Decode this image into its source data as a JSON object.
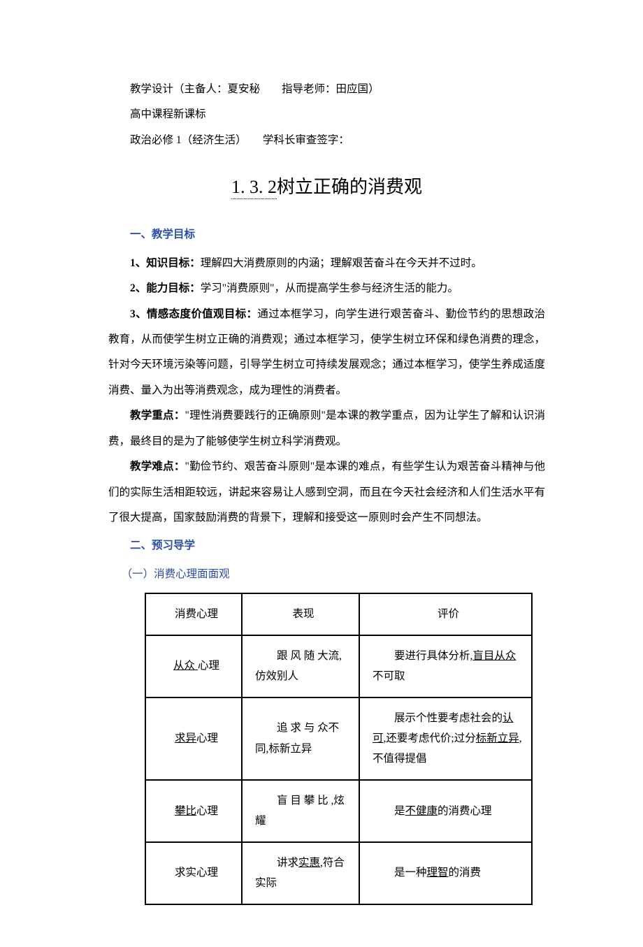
{
  "meta": {
    "line1_prefix": "教学设计（主备人：",
    "author": "夏安秘",
    "advisor_prefix": "　　指导老师：",
    "advisor": "田应国",
    "line1_suffix": "）",
    "line2": "高中课程新课标",
    "line3": "政治必修 1（经济生活）　　学科长审查签字："
  },
  "title": {
    "number": "1. 3. 2",
    "text": "树立正确的消费观"
  },
  "sec1": {
    "heading": "一、教学目标",
    "p1_label": "1、知识目标：",
    "p1_text": "理解四大消费原则的内涵；理解艰苦奋斗在今天并不过时。",
    "p2_label": "2、能力目标：",
    "p2_text": "学习\"消费原则\"，从而提高学生参与经济生活的能力。",
    "p3_label": "3、情感态度价值观目标：",
    "p3_text": "通过本框学习，向学生进行艰苦奋斗、勤俭节约的思想政治教育，从而使学生树立正确的消费观；通过本框学习，使学生树立环保和绿色消费的理念，针对今天环境污染等问题，引导学生树立可持续发展观念；通过本框学习，使学生养成适度消费、量入为出等消费观念，成为理性的消费者。",
    "p4_label": "教学重点：",
    "p4_text": "\"理性消费要践行的正确原则\"是本课的教学重点，因为让学生了解和认识消费，最终目的是为了能够使学生树立科学消费观。",
    "p5_label": "教学难点：",
    "p5_text": "\"勤俭节约、艰苦奋斗原则\"是本课的难点，有些学生认为艰苦奋斗精神与他们的实际生活相距较远，讲起来容易让人感到空洞，而且在今天社会经济和人们生活水平有了很大提高，国家鼓励消费的背景下，理解和接受这一原则时会产生不同想法。"
  },
  "sec2": {
    "heading": "二、预习导学",
    "sub": "（一）消费心理面面观"
  },
  "table": {
    "headers": [
      "消费心理",
      "表现",
      "评价"
    ],
    "rows": [
      {
        "c1_a": "从众 ",
        "c1_b": "心理",
        "c2": "　　跟 风 随 大流,仿效别人",
        "c3_a": "　　要进行具体分析,",
        "c3_u": "盲目从众",
        "c3_b": "不可取"
      },
      {
        "c1_a": "求异",
        "c1_b": "心理",
        "c2": "　　追 求 与 众不同,标新立异",
        "c3_a": "　　展示个性要考虑社会的",
        "c3_u": "认可",
        "c3_b": ",还要考虑代价;过分",
        "c3_u2": "标新立异",
        "c3_c": ",不值得提倡"
      },
      {
        "c1_a": "攀比",
        "c1_b": "心理",
        "c2": "　　盲 目 攀 比 ,炫耀",
        "c3_a": "　　是",
        "c3_u": "不健康",
        "c3_b": "的消费心理"
      },
      {
        "c1_a": "",
        "c1_plain": "求实心理",
        "c2_a": "　　讲求",
        "c2_u": "实惠",
        "c2_b": ",符合实际",
        "c3_a": "　　是一种",
        "c3_u": "理智",
        "c3_b": "的消费"
      }
    ]
  },
  "colors": {
    "heading": "#2c4ea8",
    "text": "#000000",
    "border": "#000000",
    "bg": "#ffffff"
  }
}
